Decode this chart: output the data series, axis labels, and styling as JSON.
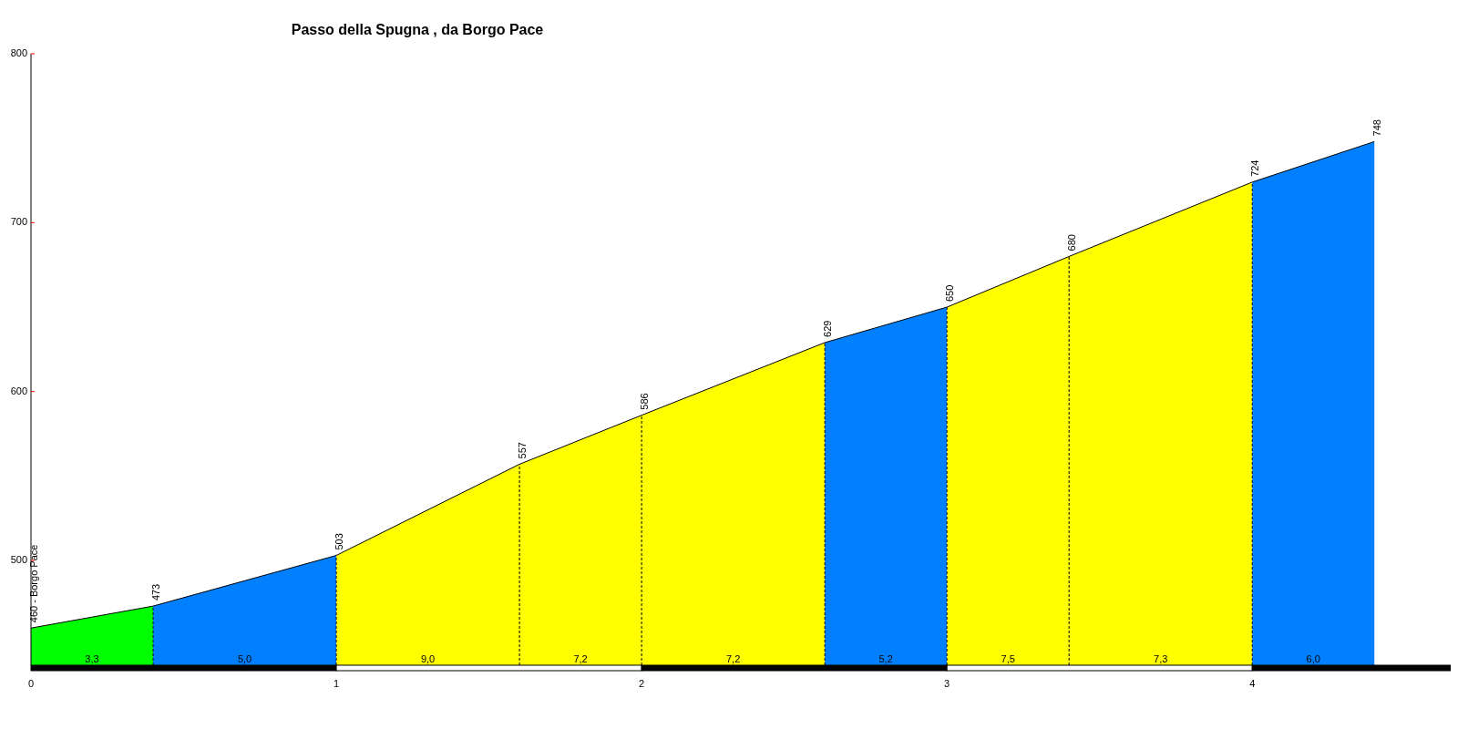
{
  "chart_data": {
    "type": "area",
    "title": "Passo della Spugna , da Borgo Pace",
    "series": [
      {
        "color": "#00ff00",
        "x": [
          0,
          0.4
        ],
        "values": [
          460,
          473
        ],
        "value_labels": [
          "460 - Borgo Pace",
          null
        ]
      },
      {
        "color": "#0080ff",
        "x": [
          0.4,
          1.0
        ],
        "values": [
          473,
          503
        ],
        "value_labels": [
          "473",
          null
        ]
      },
      {
        "color": "#ffff00",
        "x": [
          1.0,
          1.6,
          2.0,
          2.6
        ],
        "values": [
          503,
          557,
          586,
          629
        ],
        "value_labels": [
          "503",
          "557",
          "586",
          null
        ]
      },
      {
        "color": "#0080ff",
        "x": [
          2.6,
          3.0
        ],
        "values": [
          629,
          650
        ],
        "value_labels": [
          "629",
          null
        ]
      },
      {
        "color": "#ffff00",
        "x": [
          3.0,
          3.4,
          4.0
        ],
        "values": [
          650,
          680,
          724
        ],
        "value_labels": [
          "650",
          "680",
          null
        ]
      },
      {
        "color": "#0080ff",
        "x": [
          4.0,
          4.4
        ],
        "values": [
          724,
          748
        ],
        "value_labels": [
          "724",
          "748"
        ]
      }
    ],
    "annotations": [
      "3,3",
      "5,0",
      "9,0",
      "7,2",
      "7,2",
      "5,2",
      "7,5",
      "7,3",
      "6,0"
    ],
    "xlim": [
      0,
      4.65
    ],
    "ylim": [
      438,
      800
    ],
    "xticks": [
      0,
      1,
      2,
      3,
      4
    ],
    "yticks": [
      500,
      600,
      700,
      800
    ]
  }
}
